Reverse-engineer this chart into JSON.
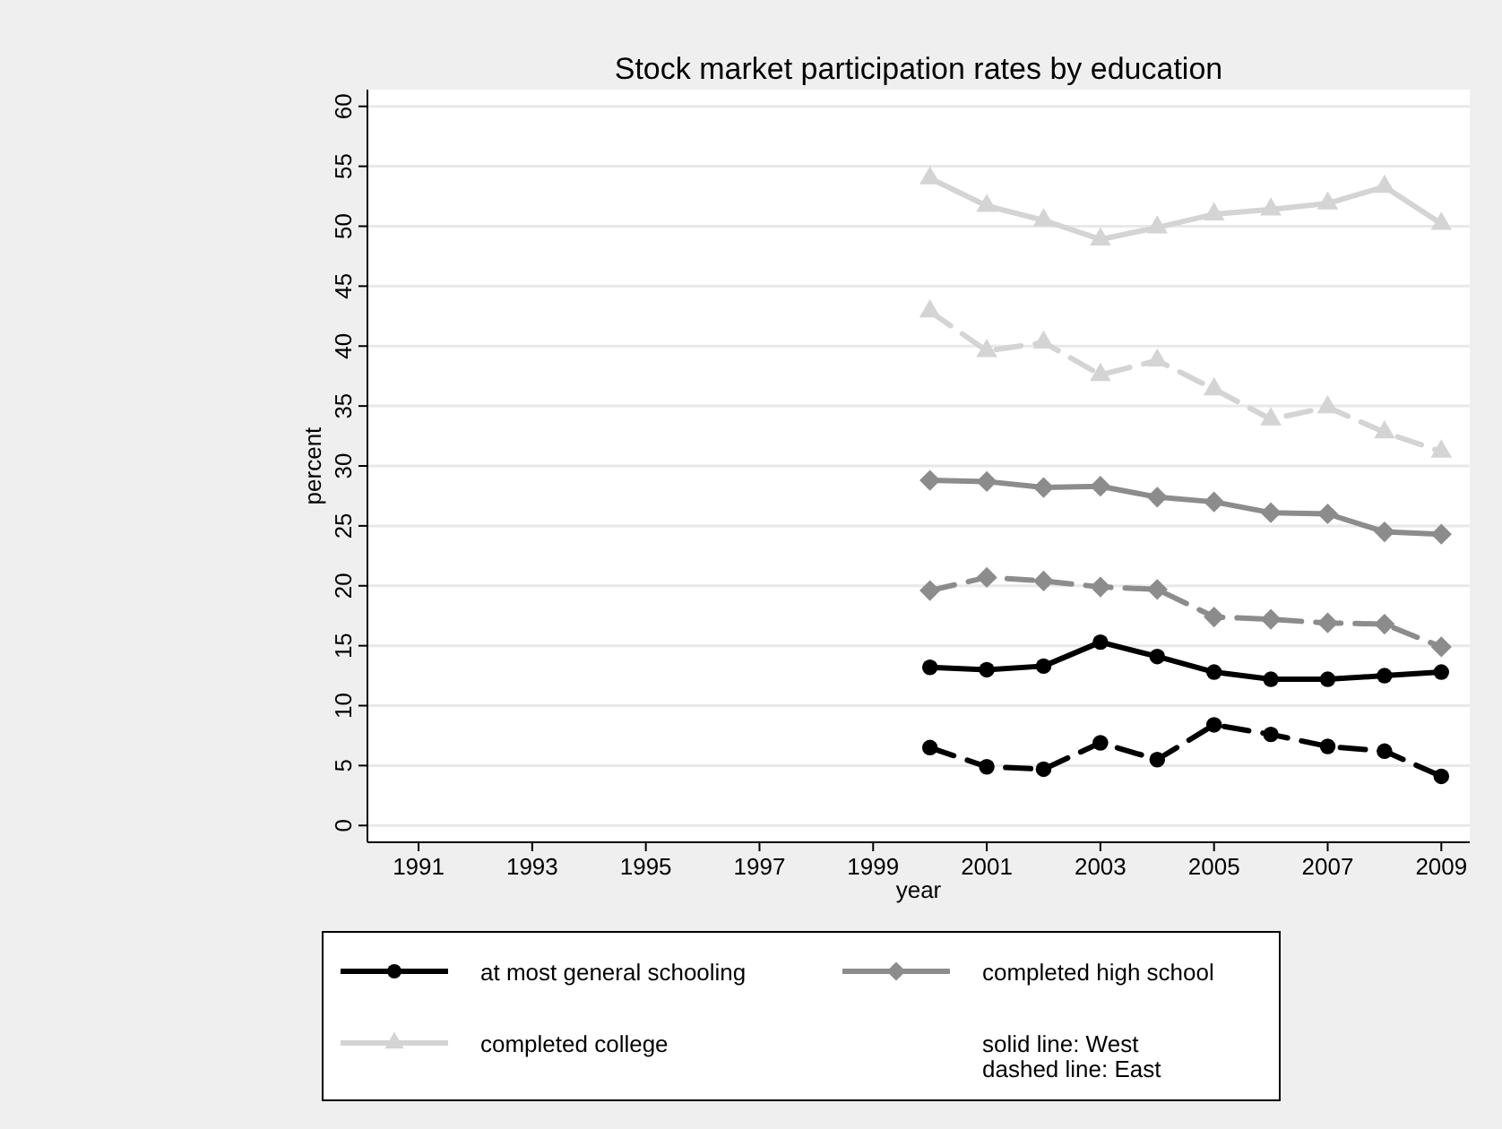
{
  "chart_data": {
    "type": "line",
    "title": "Stock market participation rates by education",
    "xlabel": "year",
    "ylabel": "percent",
    "x": [
      2000,
      2001,
      2002,
      2003,
      2004,
      2005,
      2006,
      2007,
      2008,
      2009
    ],
    "xlim": [
      1990.1,
      2009.5
    ],
    "xticks": [
      1991,
      1993,
      1995,
      1997,
      1999,
      2001,
      2003,
      2005,
      2007,
      2009
    ],
    "ylim": [
      -1.4,
      61.4
    ],
    "yticks": [
      0,
      5,
      10,
      15,
      20,
      25,
      30,
      35,
      40,
      45,
      50,
      55,
      60
    ],
    "grid": "y",
    "legend": "bottom",
    "annotations": [
      "solid line: West",
      "dashed line: East"
    ],
    "series": [
      {
        "name": "at most general schooling",
        "color": "#000000",
        "marker": "circle",
        "line_style": "solid",
        "values": [
          13.2,
          13.0,
          13.3,
          15.3,
          14.1,
          12.8,
          12.2,
          12.2,
          12.5,
          12.8
        ]
      },
      {
        "name": "completed high school",
        "color": "#8c8c8c",
        "marker": "diamond",
        "line_style": "solid",
        "values": [
          28.8,
          28.7,
          28.2,
          28.3,
          27.4,
          27.0,
          26.1,
          26.0,
          24.5,
          24.3
        ]
      },
      {
        "name": "completed college",
        "color": "#d4d4d4",
        "marker": "triangle",
        "line_style": "solid",
        "values": [
          54.0,
          51.7,
          50.5,
          48.9,
          49.9,
          51.0,
          51.4,
          51.9,
          53.3,
          50.2
        ]
      },
      {
        "color": "#000000",
        "marker": "circle",
        "line_style": "dashed",
        "values": [
          6.5,
          4.9,
          4.7,
          6.9,
          5.5,
          8.4,
          7.6,
          6.6,
          6.2,
          4.1
        ]
      },
      {
        "color": "#8c8c8c",
        "marker": "diamond",
        "line_style": "dashed",
        "values": [
          19.6,
          20.7,
          20.4,
          19.9,
          19.7,
          17.4,
          17.2,
          16.9,
          16.8,
          14.9
        ]
      },
      {
        "color": "#d4d4d4",
        "marker": "triangle",
        "line_style": "dashed",
        "values": [
          42.9,
          39.6,
          40.3,
          37.6,
          38.8,
          36.4,
          33.9,
          34.9,
          32.8,
          31.2
        ]
      }
    ]
  }
}
